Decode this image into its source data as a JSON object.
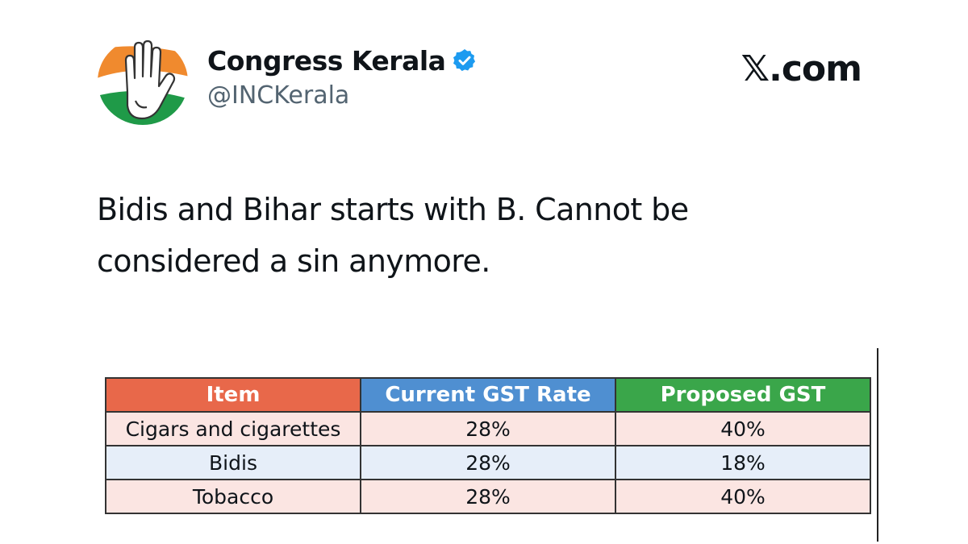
{
  "tweet": {
    "display_name": "Congress Kerala",
    "handle": "@INCKerala",
    "text": "Bidis and Bihar starts with B. Cannot be considered a sin anymore.",
    "avatar_icon": "hand-logo-icon",
    "verified_icon": "verified-badge-icon"
  },
  "brand": {
    "label": "𝕏.com"
  },
  "table": {
    "headers": [
      "Item",
      "Current GST Rate",
      "Proposed GST"
    ],
    "rows": [
      [
        "Cigars and cigarettes",
        "28%",
        "40%"
      ],
      [
        "Bidis",
        "28%",
        "18%"
      ],
      [
        "Tobacco",
        "28%",
        "40%"
      ]
    ]
  },
  "colors": {
    "item_header": "#e8684a",
    "current_header": "#4f8fd1",
    "proposed_header": "#3aa64a",
    "row_pink": "#fbe5e2",
    "row_blue": "#e6eef9",
    "verified": "#1d9bf0"
  }
}
